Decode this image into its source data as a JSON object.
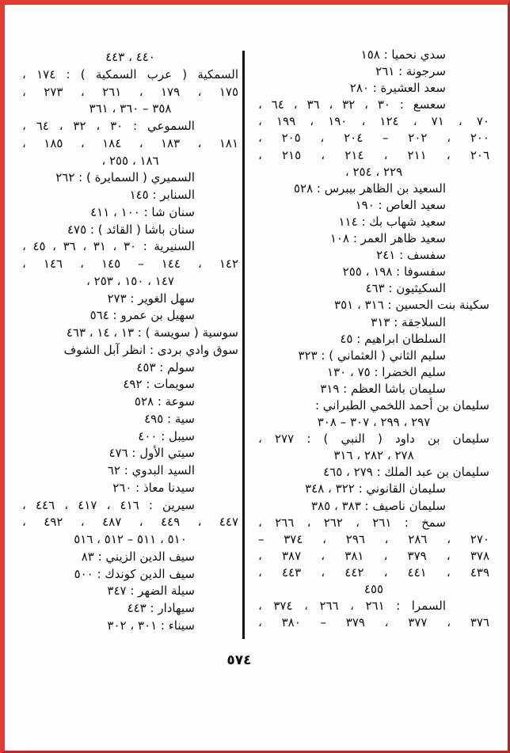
{
  "page": {
    "kind": "scanned Arabic book index page (letter س entries)",
    "page_number": "٥٧٤",
    "border_color": "#d9332e",
    "divider_color": "#141414",
    "text_color": "#0e0e0e",
    "background_color": "#fdfdfb"
  },
  "columns": {
    "right": {
      "lines": [
        {
          "t": "سدي نحميا : ١٥٨",
          "a": "i"
        },
        {
          "t": "سرجونة : ٢٦١",
          "a": "i"
        },
        {
          "t": "سعد العشيرة : ٢٨٠",
          "a": "i"
        },
        {
          "t": "سعسع : ٣٠ ، ٣٢ ، ٣٦ ، ٦٤ ،",
          "a": "ij"
        },
        {
          "t": "٧٠ ، ٧١ ، ١٢٤ ، ١٩٠ ، ١٩٩ ،",
          "a": "j"
        },
        {
          "t": "٢٠٠ ، ٢٠٢ – ٢٠٤ ، ٢٠٥ ،",
          "a": "j"
        },
        {
          "t": "٢٠٦ ، ٢١١ ، ٢١٤ ، ٢١٥ ،",
          "a": "j"
        },
        {
          "t": "٢٢٩ ، ٢٥٤ ،",
          "a": "c"
        },
        {
          "t": "السعيد بن الظاهر بيبرس : ٥٢٨",
          "a": "i"
        },
        {
          "t": "سعيد العاص : ١٩٠",
          "a": "i"
        },
        {
          "t": "سعيد شهاب بك : ١١٤",
          "a": "i"
        },
        {
          "t": "سعيد ظاهر العمر : ١٠٨",
          "a": "i"
        },
        {
          "t": "سفسف : ٢٤١",
          "a": "i"
        },
        {
          "t": "سفسوفا : ١٩٨ ، ٢٥٥",
          "a": "i"
        },
        {
          "t": "السكيثيون : ٤٦٣",
          "a": "i"
        },
        {
          "t": "سكينة بنت الحسين : ٣١٦ ، ٣٥١",
          "a": "r"
        },
        {
          "t": "السلاجقة : ٣١٣",
          "a": "i"
        },
        {
          "t": "السلطان ابراهيم : ٤٥",
          "a": "i"
        },
        {
          "t": "سليم الثاني ( العثماني ) : ٣٢٣",
          "a": "i"
        },
        {
          "t": "سليم الخضرا : ٧٥ ، ١٣٠",
          "a": "i"
        },
        {
          "t": "سليمان باشا العظم : ٣١٩",
          "a": "i"
        },
        {
          "t": "سليمان بن أحمد اللخمي الطبراني :",
          "a": "r"
        },
        {
          "t": "٢٩٧ ، ٢٩٩ ، ٣٠٧ – ٣٠٨",
          "a": "c"
        },
        {
          "t": "سليمان بن داود ( النبي ) : ٢٧٧ ،",
          "a": "j"
        },
        {
          "t": "٢٧٨ ، ٢٨٢ ، ٣١٦",
          "a": "c"
        },
        {
          "t": "سليمان بن عبد الملك : ٢٧٩ ، ٤٦٥",
          "a": "r"
        },
        {
          "t": "سليمان القانوني : ٣٢٢ ، ٣٤٨",
          "a": "i"
        },
        {
          "t": "سليمان ناصيف : ٣٨٣ ، ٣٨٥",
          "a": "i"
        },
        {
          "t": "سمخ : ٢٦١ ، ٢٦٢ ، ٢٦٦ ،",
          "a": "ij"
        },
        {
          "t": "٢٧٠ ، ٢٨٦ ، ٢٩٦ ، ٣٧٤ –",
          "a": "j"
        },
        {
          "t": "٣٧٨ ، ٣٧٩ ، ٣٨١ ، ٣٨٧ ،",
          "a": "j"
        },
        {
          "t": "٤٣٩ ، ٤٤١ ، ٤٤٢ ، ٤٤٣ ،",
          "a": "j"
        },
        {
          "t": "٤٥٥",
          "a": "c"
        },
        {
          "t": "السمرا : ٢٦١ ، ٢٦٦ ، ٣٧٤ ،",
          "a": "ij"
        },
        {
          "t": "٣٧٦ ، ٣٧٧ ، ٣٧٩ – ٣٨٠ ،",
          "a": "j"
        }
      ]
    },
    "left": {
      "lines": [
        {
          "t": "٤٤٠ ، ٤٤٣",
          "a": "c"
        },
        {
          "t": "السمكية ( عرب السمكية ) : ١٧٤ ،",
          "a": "j"
        },
        {
          "t": "١٧٥ ، ١٧٩ ، ٢٦١ ، ٢٧٣ ،",
          "a": "j"
        },
        {
          "t": "٣٥٨ – ٣٦٠ ، ٣٦١",
          "a": "c"
        },
        {
          "t": "السموعي : ٣٠ ، ٣٢ ، ٦٤ ،",
          "a": "ij"
        },
        {
          "t": "١٨١ ، ١٨٣ ، ١٨٤ ، ١٨٥ ،",
          "a": "j"
        },
        {
          "t": "١٨٦ ، ٢٥٥ ،",
          "a": "c"
        },
        {
          "t": "السميري ( السمايرة ) : ٢٦٢",
          "a": "i"
        },
        {
          "t": "السنابر : ١٤٥",
          "a": "i"
        },
        {
          "t": "سنان شا : ١٠٠ ، ٤١١",
          "a": "i"
        },
        {
          "t": "سنان باشا ( القائد ) : ٤٧٥",
          "a": "i"
        },
        {
          "t": "السنيرية : ٣٠ ، ٣١ ، ٣٦ ، ٤٥ ،",
          "a": "ij"
        },
        {
          "t": "١٤٢ ، ١٤٤ – ١٤٥ ، ١٤٦ ،",
          "a": "j"
        },
        {
          "t": "١٤٧ ، ١٥٠ ، ٢٥٣ ،",
          "a": "c"
        },
        {
          "t": "سهل الغوير : ٢٧٣",
          "a": "i"
        },
        {
          "t": "سهيل بن عمرو : ٥٦٤",
          "a": "i"
        },
        {
          "t": "سوسية ( سويسة ) : ١٣ ، ١٤ ، ٤٦٣",
          "a": "r"
        },
        {
          "t": "سوق وادي بردى : انظر آبل الشوف",
          "a": "r"
        },
        {
          "t": "سولم : ٤٥٣",
          "a": "i"
        },
        {
          "t": "سويمات : ٤٩٢",
          "a": "i"
        },
        {
          "t": "سوعة : ٥٢٨",
          "a": "i"
        },
        {
          "t": "سية : ٤٩٥",
          "a": "i"
        },
        {
          "t": "سيبل : ٤٠٠",
          "a": "i"
        },
        {
          "t": "سيتي الأول : ٤٧٦",
          "a": "i"
        },
        {
          "t": "السيد البدوي : ٦٢",
          "a": "i"
        },
        {
          "t": "سيدنا معاذ : ٢٦٠",
          "a": "i"
        },
        {
          "t": "سيرين : ٤١٦ ، ٤١٧ ، ٤٤٦ ،",
          "a": "ij"
        },
        {
          "t": "٤٤٧ ، ٤٤٩ ، ٤٨٧ ، ٤٩٢ ،",
          "a": "j"
        },
        {
          "t": "٥١٠ ، ٥١١ – ٥١٢ ، ٥١٦",
          "a": "c"
        },
        {
          "t": "سيف الدين الزيني : ٨٣",
          "a": "i"
        },
        {
          "t": "سيف الدين كوندك : ٥٠٠",
          "a": "i"
        },
        {
          "t": "سيلة الضهر : ٣٤٧",
          "a": "i"
        },
        {
          "t": "سيهادار : ٤٤٣",
          "a": "i"
        },
        {
          "t": "سيناء : ٣٠١ ، ٣٠٢",
          "a": "i"
        }
      ]
    }
  }
}
